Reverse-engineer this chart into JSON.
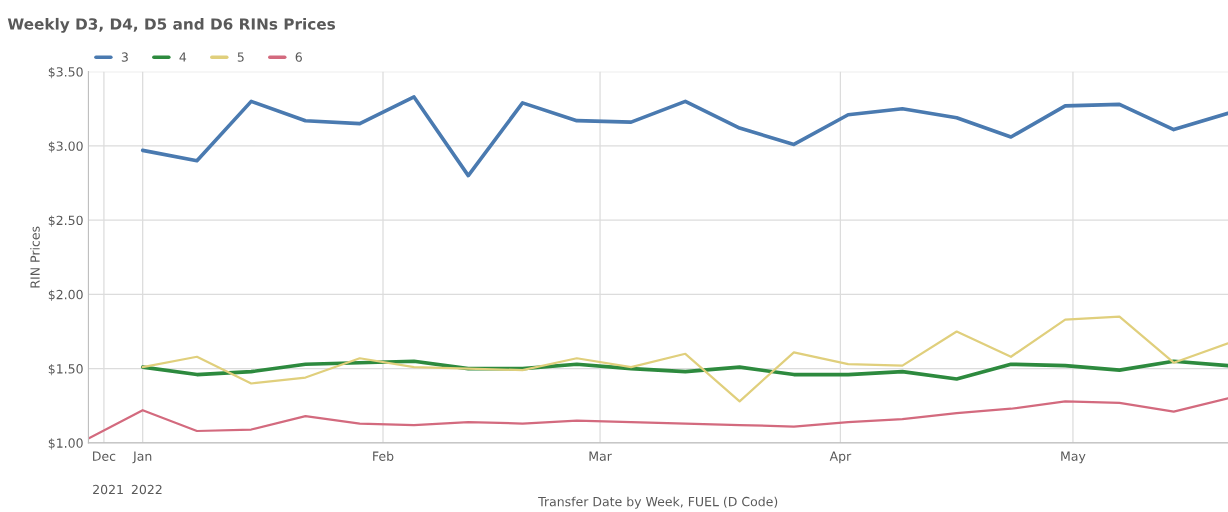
{
  "chart_data": {
    "type": "line",
    "title": "Weekly D3, D4, D5 and D6 RINs Prices",
    "xlabel": "Transfer Date by Week, FUEL (D Code)",
    "ylabel": "RIN Prices",
    "x": [
      "2022-01-01",
      "2022-01-08",
      "2022-01-15",
      "2022-01-22",
      "2022-01-29",
      "2022-02-05",
      "2022-02-12",
      "2022-02-19",
      "2022-02-26",
      "2022-03-05",
      "2022-03-12",
      "2022-03-19",
      "2022-03-26",
      "2022-04-02",
      "2022-04-09",
      "2022-04-16",
      "2022-04-23",
      "2022-04-30",
      "2022-05-07",
      "2022-05-14",
      "2022-05-21"
    ],
    "series": [
      {
        "name": "3",
        "color": "#4a7ab0",
        "values": [
          2.97,
          2.9,
          3.3,
          3.17,
          3.15,
          3.33,
          2.8,
          3.29,
          3.17,
          3.16,
          3.3,
          3.12,
          3.01,
          3.21,
          3.25,
          3.19,
          3.06,
          3.27,
          3.28,
          3.11,
          3.22
        ]
      },
      {
        "name": "4",
        "color": "#2d8a3e",
        "values": [
          1.51,
          1.46,
          1.48,
          1.53,
          1.54,
          1.55,
          1.5,
          1.5,
          1.53,
          1.5,
          1.48,
          1.51,
          1.46,
          1.46,
          1.48,
          1.43,
          1.53,
          1.52,
          1.49,
          1.55,
          1.52
        ]
      },
      {
        "name": "5",
        "color": "#e0cf7c",
        "values": [
          1.51,
          1.58,
          1.4,
          1.44,
          1.57,
          1.51,
          1.5,
          1.49,
          1.57,
          1.51,
          1.6,
          1.28,
          1.61,
          1.53,
          1.52,
          1.75,
          1.58,
          1.83,
          1.85,
          1.54,
          1.67
        ]
      },
      {
        "name": "6",
        "color": "#d36a7e",
        "x": [
          "2021-12-25",
          "2022-01-01",
          "2022-01-08",
          "2022-01-15",
          "2022-01-22",
          "2022-01-29",
          "2022-02-05",
          "2022-02-12",
          "2022-02-19",
          "2022-02-26",
          "2022-03-05",
          "2022-03-12",
          "2022-03-19",
          "2022-03-26",
          "2022-04-02",
          "2022-04-09",
          "2022-04-16",
          "2022-04-23",
          "2022-04-30",
          "2022-05-07",
          "2022-05-14",
          "2022-05-21"
        ],
        "values": [
          1.03,
          1.22,
          1.08,
          1.09,
          1.18,
          1.13,
          1.12,
          1.14,
          1.13,
          1.15,
          1.14,
          1.13,
          1.12,
          1.11,
          1.14,
          1.16,
          1.2,
          1.23,
          1.28,
          1.27,
          1.21,
          1.3
        ]
      }
    ],
    "xlim": [
      "2021-12-25",
      "2022-05-21"
    ],
    "xticks": [
      {
        "value": "2021-12-27",
        "label": "Dec"
      },
      {
        "value": "2022-01-01",
        "label": "Jan"
      },
      {
        "value": "2022-02-01",
        "label": "Feb"
      },
      {
        "value": "2022-03-01",
        "label": "Mar"
      },
      {
        "value": "2022-04-01",
        "label": "Apr"
      },
      {
        "value": "2022-05-01",
        "label": "May"
      }
    ],
    "annotations": [
      "2021",
      "2022"
    ],
    "ylim": [
      1.0,
      3.5
    ],
    "yticks": [
      {
        "value": 1.0,
        "label": "$1.00"
      },
      {
        "value": 1.5,
        "label": "$1.50"
      },
      {
        "value": 2.0,
        "label": "$2.00"
      },
      {
        "value": 2.5,
        "label": "$2.50"
      },
      {
        "value": 3.0,
        "label": "$3.00"
      },
      {
        "value": 3.5,
        "label": "$3.50"
      }
    ],
    "grid": true,
    "legend": "top left",
    "marker": "none",
    "line_style": "solid"
  }
}
